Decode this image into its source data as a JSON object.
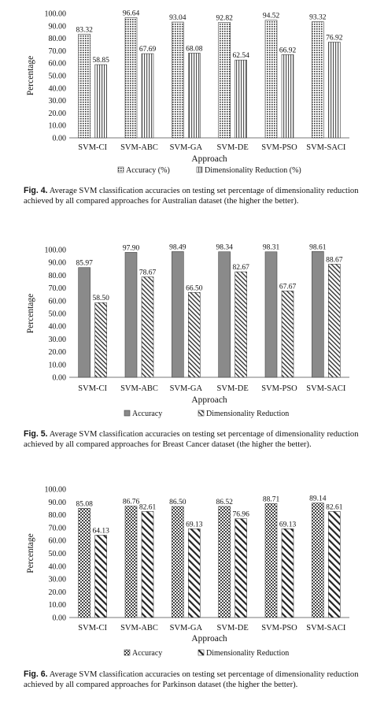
{
  "chart_data": [
    {
      "type": "bar",
      "categories": [
        "SVM-CI",
        "SVM-ABC",
        "SVM-GA",
        "SVM-DE",
        "SVM-PSO",
        "SVM-SACI"
      ],
      "series": [
        {
          "name": "Accuracy (%)",
          "values": [
            83.32,
            96.64,
            93.04,
            92.82,
            94.52,
            93.32
          ],
          "labels": [
            "83.32",
            "96.64",
            "93.04",
            "92.82",
            "94.52",
            "93.32"
          ]
        },
        {
          "name": "Dimensionality Reduction (%)",
          "values": [
            58.85,
            67.69,
            68.08,
            62.54,
            66.92,
            76.92
          ],
          "labels": [
            "58.85",
            "67.69",
            "68.08",
            "62.54",
            "66.92",
            "76.92"
          ]
        }
      ],
      "xlabel": "Approach",
      "ylabel": "Percentage",
      "ylim": [
        0,
        100
      ],
      "yticks": [
        "0.00",
        "10.00",
        "20.00",
        "30.00",
        "40.00",
        "50.00",
        "60.00",
        "70.00",
        "80.00",
        "90.00",
        "100.00"
      ],
      "legend": "bottom",
      "patterns": [
        "dots",
        "vlines"
      ],
      "caption_label": "Fig. 4.",
      "caption_text": "Average SVM classification accuracies on testing set percentage of dimensionality reduction achieved by all compared approaches for Australian dataset (the higher the better)."
    },
    {
      "type": "bar",
      "categories": [
        "SVM-CI",
        "SVM-ABC",
        "SVM-GA",
        "SVM-DE",
        "SVM-PSO",
        "SVM-SACI"
      ],
      "series": [
        {
          "name": "Accuracy",
          "values": [
            85.97,
            97.9,
            98.49,
            98.34,
            98.31,
            98.61
          ],
          "labels": [
            "85.97",
            "97.90",
            "98.49",
            "98.34",
            "98.31",
            "98.61"
          ]
        },
        {
          "name": "Dimensionality Reduction",
          "values": [
            58.5,
            78.67,
            66.5,
            82.67,
            67.67,
            88.67
          ],
          "labels": [
            "58.50",
            "78.67",
            "66.50",
            "82.67",
            "67.67",
            "88.67"
          ]
        }
      ],
      "xlabel": "Approach",
      "ylabel": "Percentage",
      "ylim": [
        0,
        100
      ],
      "yticks": [
        "0.00",
        "10.00",
        "20.00",
        "30.00",
        "40.00",
        "50.00",
        "60.00",
        "70.00",
        "80.00",
        "90.00",
        "100.00"
      ],
      "legend": "bottom",
      "patterns": [
        "solid-gray",
        "diag"
      ],
      "caption_label": "Fig. 5.",
      "caption_text": "Average SVM classification accuracies on testing set percentage of dimensionality reduction achieved by all compared approaches for Breast Cancer dataset (the higher the better)."
    },
    {
      "type": "bar",
      "categories": [
        "SVM-CI",
        "SVM-ABC",
        "SVM-GA",
        "SVM-DE",
        "SVM-PSO",
        "SVM-SACI"
      ],
      "series": [
        {
          "name": "Accuracy",
          "values": [
            85.08,
            86.76,
            86.5,
            86.52,
            88.71,
            89.14
          ],
          "labels": [
            "85.08",
            "86.76",
            "86.50",
            "86.52",
            "88.71",
            "89.14"
          ]
        },
        {
          "name": "Dimensionality Reduction",
          "values": [
            64.13,
            82.61,
            69.13,
            76.96,
            69.13,
            82.61
          ],
          "labels": [
            "64.13",
            "82.61",
            "69.13",
            "76.96",
            "69.13",
            "82.61"
          ]
        }
      ],
      "xlabel": "Approach",
      "ylabel": "Percentage",
      "ylim": [
        0,
        100
      ],
      "yticks": [
        "0.00",
        "10.00",
        "20.00",
        "30.00",
        "40.00",
        "50.00",
        "60.00",
        "70.00",
        "80.00",
        "90.00",
        "100.00"
      ],
      "legend": "bottom",
      "patterns": [
        "checker",
        "wide-diag"
      ],
      "caption_label": "Fig. 6.",
      "caption_text": "Average SVM classification accuracies on testing set percentage of dimensionality reduction achieved by all compared approaches for Parkinson dataset (the higher the better)."
    }
  ]
}
